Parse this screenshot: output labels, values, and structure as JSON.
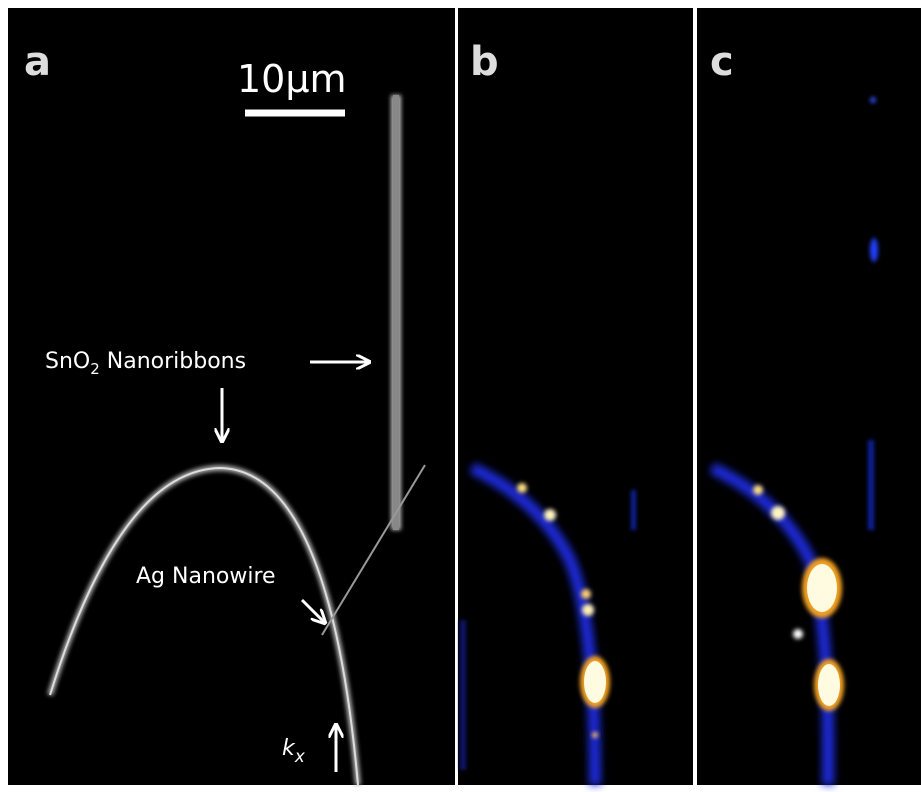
{
  "panels": [
    {
      "label": "a"
    },
    {
      "label": "b"
    },
    {
      "label": "c"
    }
  ],
  "scale_bar": "10μm",
  "annotations": {
    "sno2": {
      "text": "SnO",
      "sub": "2",
      "rest": " Nanoribbons"
    },
    "ag": "Ag Nanowire",
    "k": {
      "text": "k",
      "sub": "x"
    }
  }
}
